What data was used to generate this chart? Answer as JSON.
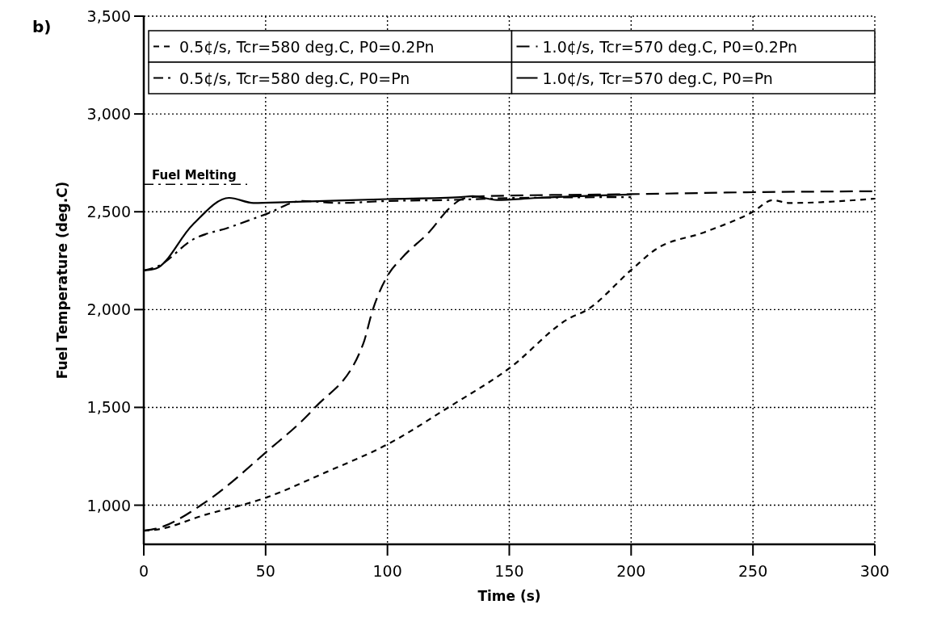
{
  "chart_data": {
    "type": "line",
    "title": "b)",
    "xlabel": "Time (s)",
    "ylabel": "Fuel Temperature (deg.C)",
    "xlim": [
      0,
      300
    ],
    "xticks": [
      0,
      50,
      100,
      150,
      200,
      250,
      300
    ],
    "ylim": [
      800,
      3500
    ],
    "yticks": [
      {
        "value": 1000,
        "label": "1,000"
      },
      {
        "value": 1500,
        "label": "1,500"
      },
      {
        "value": 2000,
        "label": "2,000"
      },
      {
        "value": 2500,
        "label": "2,500"
      },
      {
        "value": 3000,
        "label": "3,000"
      },
      {
        "value": 3500,
        "label": "3,500"
      }
    ],
    "grid": true,
    "legend": "top",
    "marker": "none",
    "ref_lines": [
      {
        "axis": "y",
        "value": 2640,
        "label": "Fuel Melting",
        "color": "#000000",
        "line_style": "dashdot"
      }
    ],
    "series": [
      {
        "name": "0.5¢/s, Tcr=580 deg.C, P0=0.2Pn",
        "color": "#000000",
        "line_style": "dotted",
        "x": [
          0,
          5,
          25,
          50,
          75,
          100,
          125,
          150,
          175,
          181,
          200,
          210,
          230,
          250,
          258,
          265,
          300
        ],
        "values": [
          870,
          875,
          950,
          1038,
          1170,
          1311,
          1500,
          1700,
          1958,
          1992,
          2202,
          2307,
          2395,
          2500,
          2559,
          2545,
          2567
        ]
      },
      {
        "name": "0.5¢/s, Tcr=580 deg.C, P0=Pn",
        "color": "#000000",
        "line_style": "dashdot",
        "x": [
          0,
          6,
          20,
          35,
          50,
          65,
          80,
          100,
          125,
          150,
          200
        ],
        "values": [
          2200,
          2223,
          2357,
          2420,
          2487,
          2555,
          2545,
          2555,
          2560,
          2570,
          2575
        ]
      },
      {
        "name": "1.0¢/s, Tcr=570 deg.C, P0=0.2Pn",
        "color": "#000000",
        "line_style": "dashed",
        "x": [
          0,
          5,
          25,
          50,
          70,
          90,
          94,
          100,
          106,
          117,
          126,
          131,
          140,
          200,
          250,
          300
        ],
        "values": [
          870,
          880,
          1013,
          1269,
          1496,
          1823,
          2000,
          2172,
          2265,
          2395,
          2525,
          2567,
          2580,
          2590,
          2600,
          2605
        ]
      },
      {
        "name": "1.0¢/s, Tcr=570 deg.C, P0=Pn",
        "color": "#000000",
        "line_style": "solid",
        "x": [
          0,
          5,
          20,
          35,
          45,
          60,
          100,
          130,
          135,
          145,
          160,
          200
        ],
        "values": [
          2200,
          2210,
          2433,
          2571,
          2545,
          2550,
          2565,
          2575,
          2580,
          2560,
          2570,
          2588
        ]
      }
    ]
  }
}
